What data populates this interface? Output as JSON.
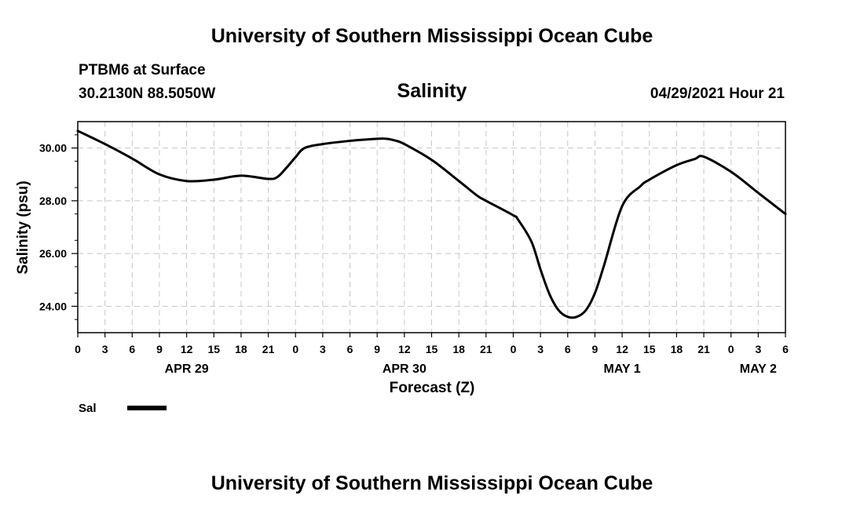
{
  "page": {
    "top_title": "University of Southern Mississippi Ocean Cube",
    "bottom_title": "University of Southern Mississippi Ocean Cube",
    "station_line": "PTBM6 at Surface",
    "coords_line": "30.2130N  88.5050W",
    "timestamp": "04/29/2021 Hour 21"
  },
  "chart_data": {
    "type": "line",
    "title": "Salinity",
    "xlabel": "Forecast (Z)",
    "ylabel": "Salinity (psu)",
    "xlim": [
      0,
      78
    ],
    "ylim": [
      23,
      31
    ],
    "grid": true,
    "y_ticks": [
      24,
      26,
      28,
      30
    ],
    "y_tick_labels": [
      "24.00",
      "26.00",
      "28.00",
      "30.00"
    ],
    "x_ticks": [
      0,
      3,
      6,
      9,
      12,
      15,
      18,
      21,
      24,
      27,
      30,
      33,
      36,
      39,
      42,
      45,
      48,
      51,
      54,
      57,
      60,
      63,
      66,
      69,
      72,
      75,
      78
    ],
    "x_tick_labels": [
      "0",
      "3",
      "6",
      "9",
      "12",
      "15",
      "18",
      "21",
      "0",
      "3",
      "6",
      "9",
      "12",
      "15",
      "18",
      "21",
      "0",
      "3",
      "6",
      "9",
      "12",
      "15",
      "18",
      "21",
      "0",
      "3",
      "6"
    ],
    "date_labels": [
      {
        "x": 12,
        "label": "APR 29"
      },
      {
        "x": 36,
        "label": "APR 30"
      },
      {
        "x": 60,
        "label": "MAY 1"
      },
      {
        "x": 75,
        "label": "MAY 2"
      }
    ],
    "legend": {
      "position": "bottom-left",
      "entries": [
        {
          "name": "Sal",
          "color": "#000000"
        }
      ]
    },
    "series": [
      {
        "name": "Sal",
        "color": "#000000",
        "x": [
          0,
          3,
          6,
          9,
          12,
          15,
          18,
          21,
          22,
          23,
          24,
          25,
          27,
          30,
          33,
          34,
          35,
          36,
          39,
          42,
          44,
          45,
          48,
          48.5,
          50,
          51,
          52,
          53,
          54,
          55,
          56,
          57,
          58,
          60,
          62,
          63,
          66,
          68,
          69,
          72,
          75,
          78
        ],
        "y": [
          30.65,
          30.15,
          29.6,
          29.0,
          28.75,
          28.8,
          28.95,
          28.83,
          28.9,
          29.25,
          29.65,
          30.0,
          30.15,
          30.27,
          30.35,
          30.35,
          30.28,
          30.15,
          29.55,
          28.75,
          28.2,
          28.0,
          27.45,
          27.3,
          26.45,
          25.4,
          24.45,
          23.85,
          23.6,
          23.6,
          23.85,
          24.5,
          25.55,
          27.8,
          28.55,
          28.8,
          29.35,
          29.58,
          29.67,
          29.1,
          28.3,
          27.5
        ]
      }
    ]
  }
}
